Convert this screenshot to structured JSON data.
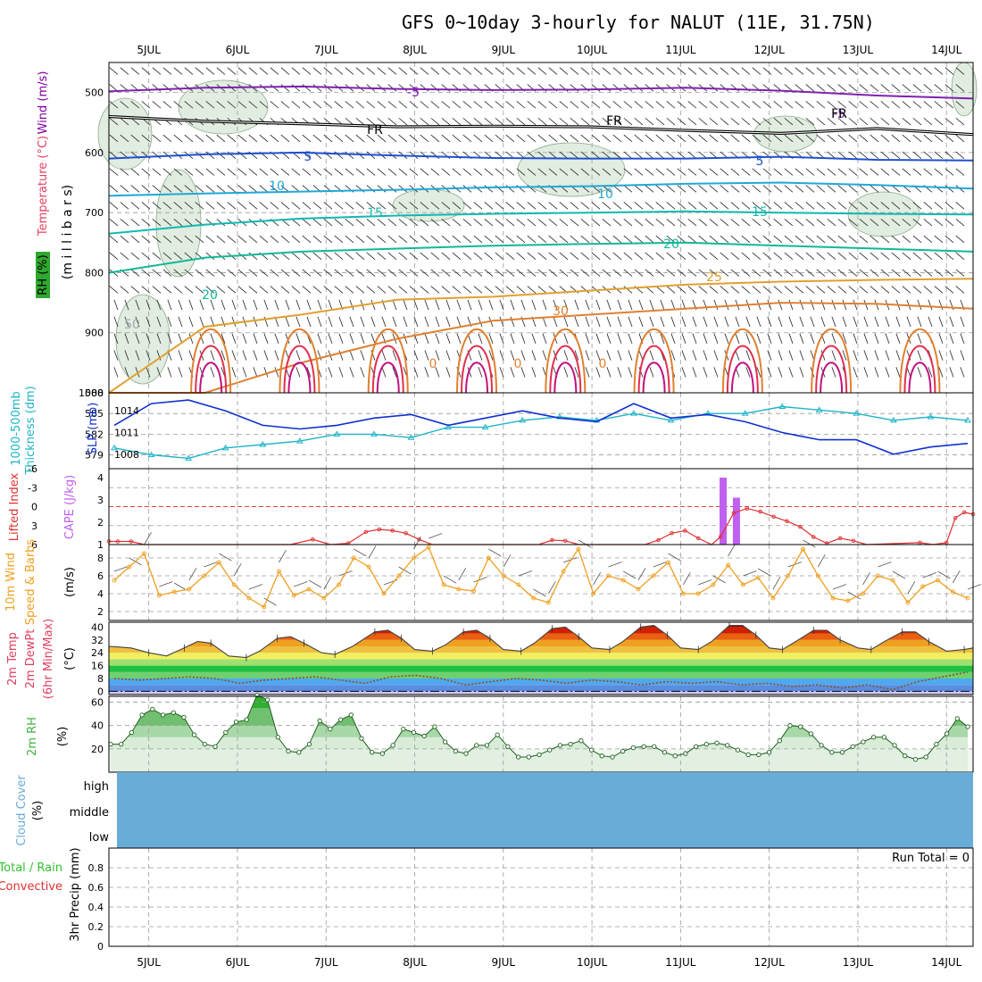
{
  "header": {
    "title": "GFS 0~10day 3-hourly for NALUT (11E, 31.75N)"
  },
  "time_axis": {
    "day_labels": [
      "5JUL",
      "6JUL",
      "7JUL",
      "8JUL",
      "9JUL",
      "10JUL",
      "11JUL",
      "12JUL",
      "13JUL",
      "14JUL"
    ],
    "start_day": 4.55,
    "end_day": 14.3
  },
  "colors": {
    "wind_title": "#8000a0",
    "temp_title": "#e04060",
    "rh_badge": "#2ea82e",
    "thickness": "#1eb4c8",
    "slp": "#1030d0",
    "lifted_index": "#e03030",
    "cape": "#c060f0",
    "wind10": "#f0a020",
    "rh2m": "#40b040",
    "cloud": "#6aacd8",
    "precip_total": "#30c030",
    "precip_conv": "#e03030"
  },
  "chart_data": [
    {
      "panel": "upper-air",
      "type": "line",
      "title_wind": "Wind (m/s)",
      "title_temp": "Temperature (°C)",
      "title_rh": "RH (%)",
      "ylabel": "(m i l l i b a r s)",
      "y_ticks": [
        500,
        600,
        700,
        800,
        900,
        1000
      ],
      "ylim": [
        450,
        1000
      ],
      "contour_labels": [
        "-5",
        "FR",
        "5",
        "10",
        "15",
        "20",
        "25",
        "30",
        "-5",
        "FR",
        "5",
        "10",
        "15",
        "20",
        "FR",
        "50",
        "0",
        "0",
        "0"
      ],
      "isotherms": [
        {
          "name": "-5",
          "color": "#8020b0",
          "levels": [
            498,
            492,
            490,
            494,
            496,
            495,
            492,
            497,
            505,
            510
          ]
        },
        {
          "name": "FR",
          "color": "#000000",
          "levels": [
            540,
            548,
            552,
            557,
            556,
            557,
            563,
            568,
            560,
            570
          ]
        },
        {
          "name": "5",
          "color": "#2050d0",
          "levels": [
            610,
            603,
            600,
            605,
            609,
            610,
            610,
            607,
            612,
            613
          ]
        },
        {
          "name": "10",
          "color": "#20a8d8",
          "levels": [
            672,
            668,
            665,
            662,
            658,
            656,
            652,
            650,
            654,
            660
          ]
        },
        {
          "name": "15",
          "color": "#10b8b0",
          "levels": [
            735,
            720,
            710,
            705,
            702,
            700,
            698,
            700,
            702,
            703
          ]
        },
        {
          "name": "20",
          "color": "#10b898",
          "levels": [
            800,
            775,
            765,
            760,
            755,
            752,
            750,
            755,
            760,
            765
          ]
        },
        {
          "name": "25",
          "color": "#e0a030",
          "levels": [
            1000,
            890,
            870,
            845,
            840,
            830,
            820,
            815,
            812,
            810
          ]
        },
        {
          "name": "30",
          "color": "#e08030",
          "levels": [
            1000,
            1000,
            950,
            910,
            880,
            870,
            860,
            850,
            852,
            860
          ]
        }
      ]
    },
    {
      "panel": "thickness-slp",
      "type": "line",
      "title_thickness": "Thickness (dm)",
      "title_thickness_layer": "1000-500mb",
      "title_slp": "SLP (mb)",
      "left_ticks": [
        579,
        582,
        585,
        588
      ],
      "right_ticks": [
        1008,
        1011,
        1014
      ],
      "left_ylim": [
        577,
        588
      ],
      "right_ylim": [
        1006,
        1016.5
      ],
      "thickness": [
        580,
        579,
        578.5,
        580,
        580.5,
        581,
        582,
        582,
        581.5,
        583,
        583,
        584,
        584.5,
        584,
        585,
        584,
        585,
        585,
        586,
        585.5,
        585,
        584,
        584.5,
        584
      ],
      "slp": [
        1012,
        1015,
        1015.5,
        1014,
        1012,
        1011.5,
        1012,
        1013,
        1013.5,
        1012,
        1013,
        1014,
        1013,
        1012.5,
        1015,
        1013,
        1013.5,
        1012.5,
        1011,
        1010,
        1010,
        1008,
        1009,
        1009.5
      ]
    },
    {
      "panel": "stability",
      "type": "bar",
      "title_li": "Lifted Index",
      "title_cape": "CAPE (J/kg)",
      "left_ticks": [
        "-6",
        "-3",
        "0",
        "3",
        "6"
      ],
      "right_ticks": [
        "4",
        "3",
        "2",
        "1"
      ],
      "li_ylim": [
        6,
        -6
      ],
      "cape_ylim": [
        1,
        4.4
      ],
      "cape_bars": [
        {
          "x": 11.48,
          "value": 4
        },
        {
          "x": 11.63,
          "value": 3.1
        }
      ],
      "lifted_index": [
        [
          4.55,
          5.5
        ],
        [
          4.65,
          5.5
        ],
        [
          4.8,
          5.5
        ],
        [
          4.95,
          6
        ],
        [
          5.2,
          6
        ],
        [
          6.6,
          6
        ],
        [
          6.85,
          5.2
        ],
        [
          7.05,
          6
        ],
        [
          7.25,
          5.8
        ],
        [
          7.45,
          4
        ],
        [
          7.6,
          3.6
        ],
        [
          7.75,
          3.8
        ],
        [
          7.9,
          4.2
        ],
        [
          8.05,
          5.2
        ],
        [
          8.2,
          6
        ],
        [
          9.4,
          6
        ],
        [
          9.55,
          5.3
        ],
        [
          9.7,
          5.4
        ],
        [
          9.85,
          6
        ],
        [
          10.6,
          6
        ],
        [
          10.75,
          5.3
        ],
        [
          10.9,
          4.2
        ],
        [
          11.05,
          3.8
        ],
        [
          11.2,
          5
        ],
        [
          11.35,
          6
        ],
        [
          11.45,
          4.8
        ],
        [
          11.6,
          1
        ],
        [
          11.75,
          0.3
        ],
        [
          11.9,
          0.8
        ],
        [
          12.05,
          1.6
        ],
        [
          12.2,
          2.3
        ],
        [
          12.35,
          3.2
        ],
        [
          12.5,
          4.8
        ],
        [
          12.65,
          5.8
        ],
        [
          12.8,
          5
        ],
        [
          12.95,
          5.4
        ],
        [
          13.1,
          6
        ],
        [
          13.7,
          5.7
        ],
        [
          13.85,
          6
        ],
        [
          14.0,
          5.7
        ],
        [
          14.1,
          1.8
        ],
        [
          14.2,
          0.9
        ],
        [
          14.3,
          1.2
        ]
      ]
    },
    {
      "panel": "wind10",
      "type": "line",
      "title": "10m Wind",
      "subtitle": "Speed & Barbs",
      "ylabel": "(m/s)",
      "y_ticks": [
        2,
        4,
        6,
        8
      ],
      "ylim": [
        1,
        9.5
      ],
      "speed": [
        5.5,
        7,
        8.5,
        3.8,
        4.2,
        4.5,
        6,
        7.5,
        5,
        3.5,
        2.5,
        6.5,
        3.8,
        4.5,
        3.5,
        5,
        8,
        7,
        4,
        6,
        8,
        9.2,
        5,
        4.5,
        4.3,
        8,
        6,
        5,
        3.5,
        3,
        6.5,
        9,
        4,
        6,
        5.5,
        4.5,
        6,
        7.5,
        4,
        4,
        5,
        7.2,
        5,
        5.8,
        3.5,
        6,
        9,
        6,
        3.5,
        3.2,
        4,
        6,
        5.5,
        3,
        4.8,
        5.5,
        4.2,
        3.5
      ]
    },
    {
      "panel": "temperature",
      "type": "area",
      "title": "2m Temp",
      "title_dewpt": "2m DewPt",
      "title_minmax": "(6hr Min/Max)",
      "ylabel": "(°C)",
      "y_ticks": [
        0,
        8,
        16,
        24,
        32,
        40
      ],
      "ylim": [
        -2,
        43
      ],
      "band_colors": [
        "#d0c8f0",
        "#5a8ce0",
        "#50a8f0",
        "#70d070",
        "#20c040",
        "#a0e070",
        "#f0f060",
        "#f0c040",
        "#f0a020",
        "#e86010",
        "#d02000",
        "#a00000"
      ],
      "temp": [
        [
          4.55,
          28
        ],
        [
          4.8,
          27
        ],
        [
          5.0,
          24
        ],
        [
          5.2,
          22
        ],
        [
          5.4,
          27
        ],
        [
          5.55,
          31
        ],
        [
          5.7,
          30
        ],
        [
          5.9,
          22
        ],
        [
          6.1,
          21
        ],
        [
          6.25,
          25
        ],
        [
          6.45,
          33
        ],
        [
          6.6,
          34
        ],
        [
          6.75,
          30
        ],
        [
          6.95,
          24
        ],
        [
          7.1,
          23
        ],
        [
          7.3,
          28
        ],
        [
          7.55,
          37
        ],
        [
          7.7,
          38
        ],
        [
          7.85,
          33
        ],
        [
          8.0,
          26
        ],
        [
          8.2,
          25
        ],
        [
          8.35,
          29
        ],
        [
          8.55,
          37
        ],
        [
          8.7,
          38
        ],
        [
          8.85,
          33
        ],
        [
          9.0,
          26
        ],
        [
          9.2,
          25
        ],
        [
          9.35,
          30
        ],
        [
          9.55,
          39
        ],
        [
          9.7,
          40
        ],
        [
          9.85,
          34
        ],
        [
          10.0,
          27
        ],
        [
          10.2,
          26
        ],
        [
          10.35,
          31
        ],
        [
          10.55,
          40
        ],
        [
          10.7,
          41
        ],
        [
          10.85,
          35
        ],
        [
          11.0,
          27
        ],
        [
          11.2,
          26
        ],
        [
          11.35,
          31
        ],
        [
          11.55,
          41
        ],
        [
          11.7,
          41
        ],
        [
          11.85,
          35
        ],
        [
          12.0,
          27
        ],
        [
          12.15,
          26
        ],
        [
          12.3,
          31
        ],
        [
          12.5,
          38
        ],
        [
          12.65,
          38
        ],
        [
          12.8,
          32
        ],
        [
          13.0,
          27
        ],
        [
          13.15,
          26
        ],
        [
          13.3,
          31
        ],
        [
          13.5,
          37
        ],
        [
          13.65,
          37
        ],
        [
          13.8,
          31
        ],
        [
          14.0,
          25
        ],
        [
          14.2,
          26
        ],
        [
          14.3,
          27
        ]
      ],
      "dewpt": [
        8,
        7,
        8,
        9,
        8,
        5,
        7,
        8,
        9,
        7,
        5,
        9,
        10,
        8,
        4,
        6,
        8,
        7,
        5,
        7,
        6,
        4,
        6,
        5,
        6,
        4,
        5,
        3,
        4,
        2,
        4,
        1,
        6,
        9,
        12
      ]
    },
    {
      "panel": "rh2m",
      "type": "area",
      "title": "2m RH",
      "ylabel": "(%)",
      "y_ticks": [
        20,
        40,
        60
      ],
      "ylim": [
        0,
        65
      ],
      "rh": [
        24,
        24,
        34,
        49,
        54,
        49,
        51,
        47,
        32,
        24,
        22,
        34,
        43,
        45,
        66,
        62,
        30,
        18,
        17,
        24,
        44,
        37,
        45,
        49,
        29,
        17,
        16,
        23,
        37,
        34,
        31,
        39,
        26,
        18,
        16,
        23,
        23,
        32,
        22,
        13,
        13,
        15,
        19,
        23,
        24,
        27,
        19,
        14,
        13,
        18,
        21,
        22,
        22,
        17,
        14,
        16,
        22,
        24,
        25,
        23,
        19,
        15,
        15,
        17,
        27,
        40,
        39,
        33,
        23,
        17,
        17,
        22,
        26,
        30,
        30,
        23,
        14,
        11,
        13,
        24,
        33,
        46,
        39
      ]
    },
    {
      "panel": "cloud",
      "type": "heatmap",
      "title": "Cloud Cover",
      "ylabel": "(%)",
      "levels": [
        "high",
        "middle",
        "low"
      ],
      "cover": [
        0,
        0,
        0
      ]
    },
    {
      "panel": "precip",
      "type": "bar",
      "title_total": "Total / Rain",
      "title_conv": "Convective",
      "ylabel": "3hr Precip (mm)",
      "y_ticks": [
        "0",
        "0.2",
        "0.4",
        "0.6",
        "0.8"
      ],
      "ylim": [
        0,
        1
      ],
      "run_total": "Run Total = 0",
      "values": []
    }
  ]
}
